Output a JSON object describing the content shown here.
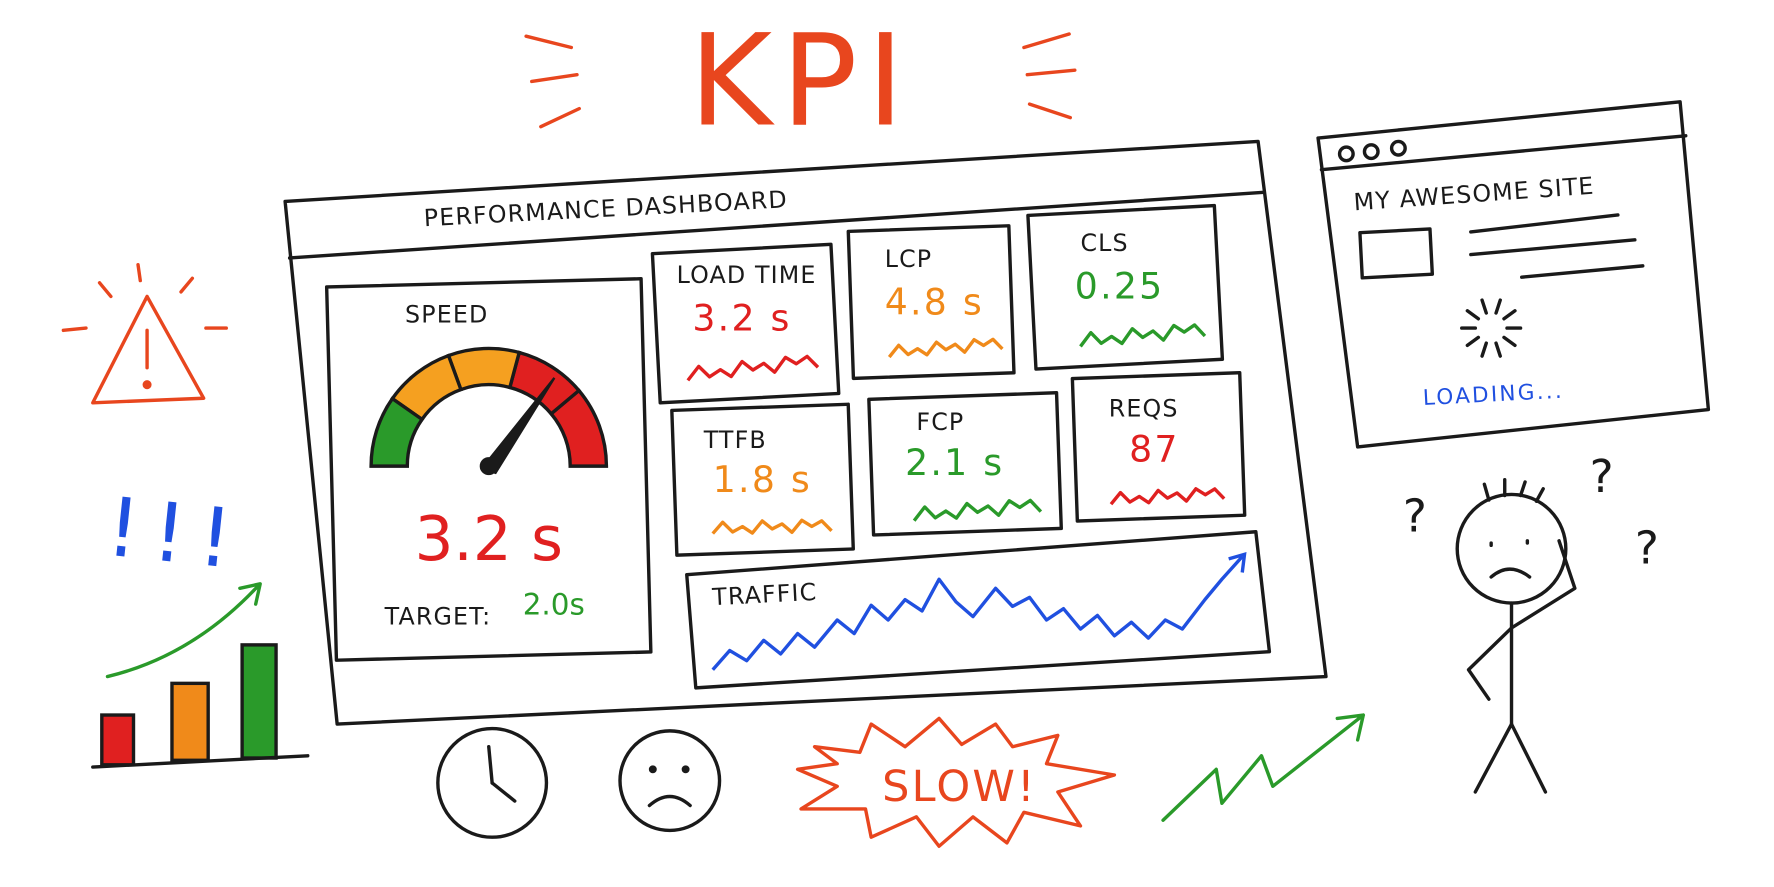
{
  "header": {
    "title": "KPI"
  },
  "dashboard": {
    "title": "PERFORMANCE DASHBOARD",
    "speed": {
      "label": "SPEED",
      "value": "3.2 s",
      "target_label": "TARGET:",
      "target_value": "2.0s"
    },
    "cards": [
      {
        "label": "LOAD TIME",
        "value": "3.2 s"
      },
      {
        "label": "LCP",
        "value": "4.8 s"
      },
      {
        "label": "CLS",
        "value": "0.25"
      },
      {
        "label": "TTFB",
        "value": "1.8 s"
      },
      {
        "label": "FCP",
        "value": "2.1 s"
      },
      {
        "label": "REQS",
        "value": "87"
      }
    ],
    "traffic": {
      "label": "TRAFFIC"
    }
  },
  "site": {
    "title": "MY AWESOME SITE",
    "status": "LOADING..."
  },
  "alert": {
    "exclamations": "!!!"
  },
  "badge": {
    "label": "SLOW!"
  },
  "confusion": {
    "marks": [
      "?",
      "?",
      "?"
    ]
  }
}
